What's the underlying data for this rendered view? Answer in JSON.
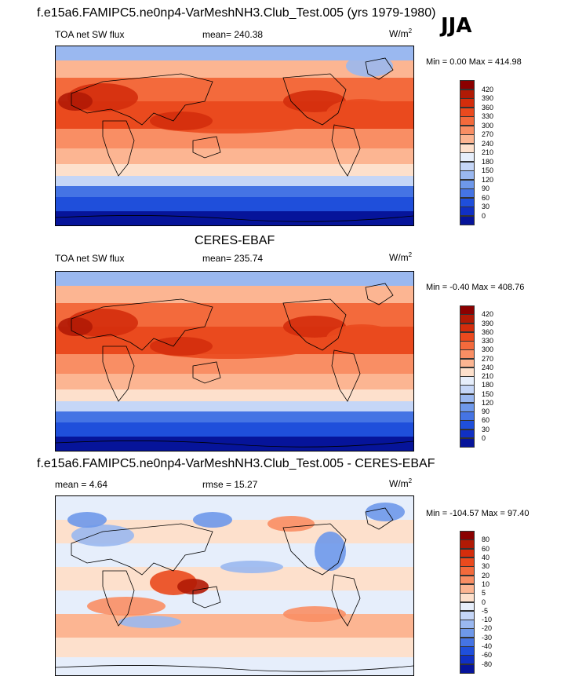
{
  "season": "JJA",
  "model_title": "f.e15a6.FAMIPC5.ne0np4-VarMeshNH3.Club_Test.005 (yrs 1979-1980)",
  "panels": [
    {
      "title": "",
      "left_label": "TOA net SW flux",
      "center_label": "mean= 240.38",
      "units": "W/m",
      "units_sup": "2",
      "min_label": "Min =",
      "min": "0.00",
      "max_label": "Max =",
      "max": "414.98",
      "minmax_text": "Min =   0.00 Max = 414.98",
      "ticks": [
        "420",
        "390",
        "360",
        "330",
        "300",
        "270",
        "240",
        "210",
        "180",
        "150",
        "120",
        "90",
        "60",
        "30",
        "0"
      ],
      "colors": [
        "#8b0000",
        "#b11a05",
        "#d42d0c",
        "#ea4a1e",
        "#f36a3c",
        "#f98e64",
        "#fcb592",
        "#fde0cc",
        "#e6eefb",
        "#c5d6f7",
        "#9ab8f0",
        "#6e98ea",
        "#4574e4",
        "#1f4fdb",
        "#1030c4",
        "#06149a"
      ]
    },
    {
      "title": "CERES-EBAF",
      "left_label": "TOA net SW flux",
      "center_label": "mean= 235.74",
      "units": "W/m",
      "units_sup": "2",
      "min": "-0.40",
      "max": "408.76",
      "minmax_text": "Min =  -0.40 Max = 408.76",
      "ticks": [
        "420",
        "390",
        "360",
        "330",
        "300",
        "270",
        "240",
        "210",
        "180",
        "150",
        "120",
        "90",
        "60",
        "30",
        "0"
      ],
      "colors": [
        "#8b0000",
        "#b11a05",
        "#d42d0c",
        "#ea4a1e",
        "#f36a3c",
        "#f98e64",
        "#fcb592",
        "#fde0cc",
        "#e6eefb",
        "#c5d6f7",
        "#9ab8f0",
        "#6e98ea",
        "#4574e4",
        "#1f4fdb",
        "#1030c4",
        "#06149a"
      ]
    },
    {
      "title": "f.e15a6.FAMIPC5.ne0np4-VarMeshNH3.Club_Test.005 - CERES-EBAF",
      "left_label": "mean =   4.64",
      "center_label": "rmse =  15.27",
      "units": "W/m",
      "units_sup": "2",
      "min": "-104.57",
      "max": "97.40",
      "minmax_text": "Min = -104.57 Max =  97.40",
      "ticks": [
        "80",
        "60",
        "40",
        "30",
        "20",
        "10",
        "5",
        "0",
        "-5",
        "-10",
        "-20",
        "-30",
        "-40",
        "-60",
        "-80"
      ],
      "colors": [
        "#8b0000",
        "#b11a05",
        "#d42d0c",
        "#ea4a1e",
        "#f36a3c",
        "#f98e64",
        "#fcb592",
        "#fde0cc",
        "#e6eefb",
        "#c5d6f7",
        "#9ab8f0",
        "#6e98ea",
        "#4574e4",
        "#1f4fdb",
        "#1030c4",
        "#06149a"
      ]
    }
  ],
  "chart_data": [
    {
      "type": "heatmap",
      "title": "f.e15a6.FAMIPC5.ne0np4-VarMeshNH3.Club_Test.005 (yrs 1979-1980)",
      "subtitle": "TOA net SW flux",
      "units": "W/m2",
      "season": "JJA",
      "mean": 240.38,
      "min": 0.0,
      "max": 414.98,
      "contour_levels": [
        0,
        30,
        60,
        90,
        120,
        150,
        180,
        210,
        240,
        270,
        300,
        330,
        360,
        390,
        420
      ]
    },
    {
      "type": "heatmap",
      "title": "CERES-EBAF",
      "subtitle": "TOA net SW flux",
      "units": "W/m2",
      "mean": 235.74,
      "min": -0.4,
      "max": 408.76,
      "contour_levels": [
        0,
        30,
        60,
        90,
        120,
        150,
        180,
        210,
        240,
        270,
        300,
        330,
        360,
        390,
        420
      ]
    },
    {
      "type": "heatmap",
      "title": "f.e15a6.FAMIPC5.ne0np4-VarMeshNH3.Club_Test.005 - CERES-EBAF",
      "units": "W/m2",
      "mean": 4.64,
      "rmse": 15.27,
      "min": -104.57,
      "max": 97.4,
      "contour_levels": [
        -80,
        -60,
        -40,
        -30,
        -20,
        -10,
        -5,
        0,
        5,
        10,
        20,
        30,
        40,
        60,
        80
      ]
    }
  ]
}
